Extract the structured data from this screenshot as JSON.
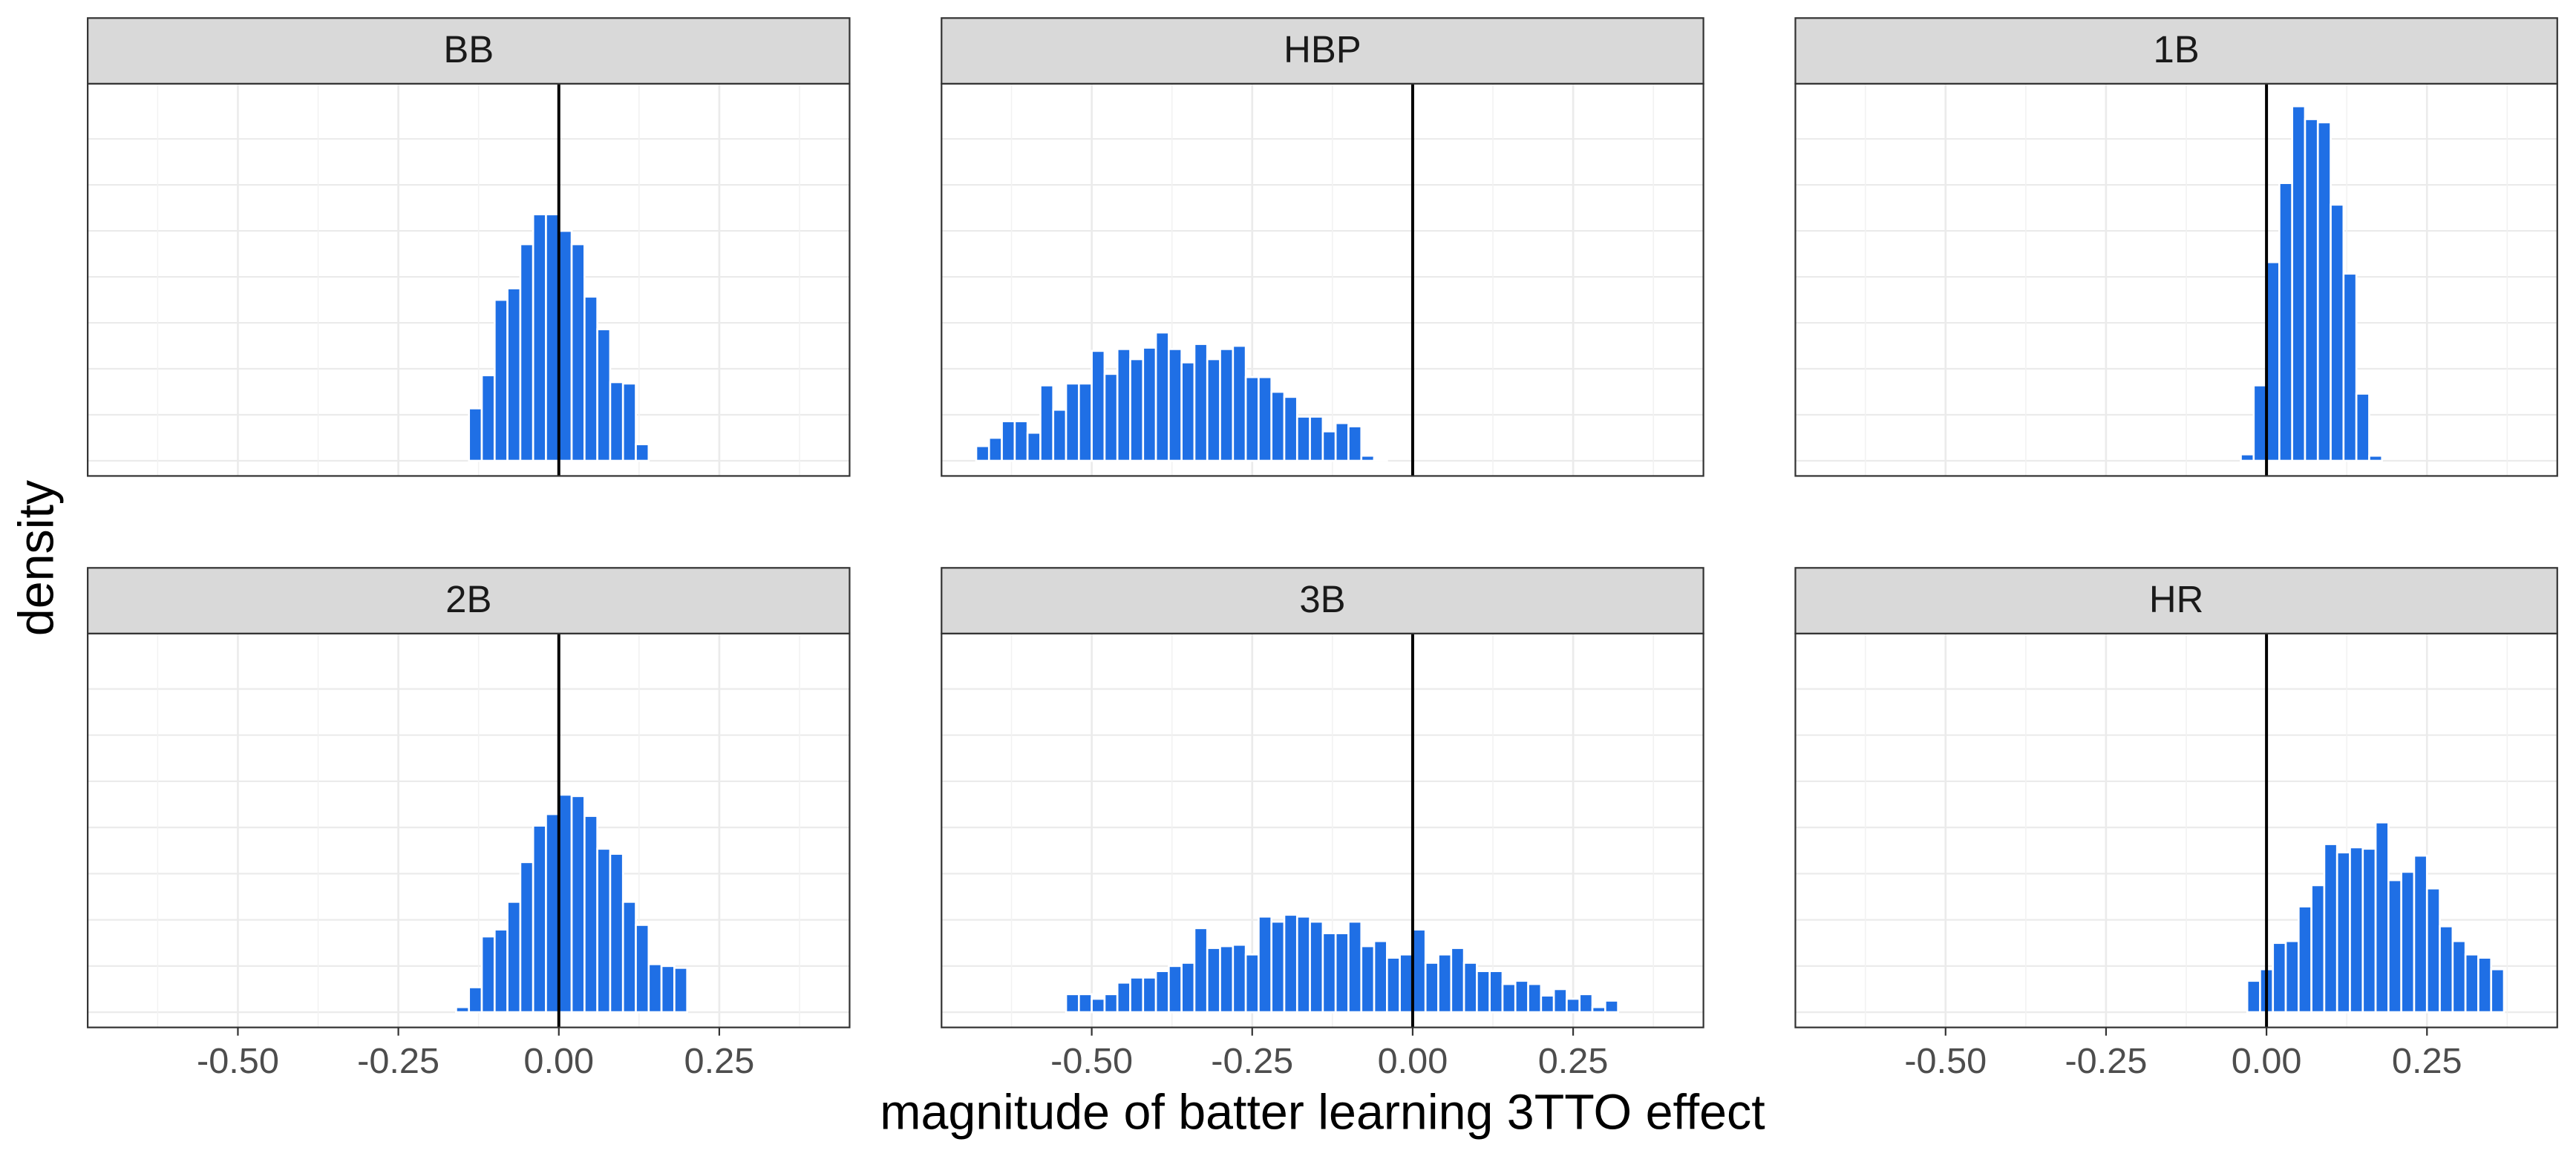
{
  "chart_data": {
    "type": "histogram",
    "xlabel": "magnitude of batter learning 3TTO effect",
    "ylabel": "density",
    "xlim": [
      -0.734,
      0.453
    ],
    "xticks": [
      {
        "value": -0.5,
        "label": "-0.50"
      },
      {
        "value": -0.25,
        "label": "-0.25"
      },
      {
        "value": 0,
        "label": "0.00"
      },
      {
        "value": 0.25,
        "label": "0.25"
      }
    ],
    "xminor": [
      -0.625,
      -0.375,
      -0.125,
      0.125,
      0.375
    ],
    "ylim": [
      -0.33,
      8.2
    ],
    "yticks": [
      0,
      1,
      2,
      3,
      4,
      5,
      6,
      7
    ],
    "grid": true,
    "vline": 0,
    "color": "#1f6fe5",
    "panels": [
      {
        "title": "BB",
        "bins": [
          -0.14,
          -0.12,
          -0.1,
          -0.08,
          -0.06,
          -0.04,
          -0.02,
          0,
          0.02,
          0.04,
          0.06,
          0.08,
          0.1,
          0.12,
          0.14
        ],
        "values": [
          1.14,
          1.86,
          3.5,
          3.75,
          4.71,
          5.36,
          5.36,
          5.0,
          4.71,
          3.57,
          2.86,
          1.71,
          1.68,
          0.36
        ]
      },
      {
        "title": "HBP",
        "bins": [
          -0.68,
          -0.66,
          -0.64,
          -0.62,
          -0.6,
          -0.58,
          -0.56,
          -0.54,
          -0.52,
          -0.5,
          -0.48,
          -0.46,
          -0.44,
          -0.42,
          -0.4,
          -0.38,
          -0.36,
          -0.34,
          -0.32,
          -0.3,
          -0.28,
          -0.26,
          -0.24,
          -0.22,
          -0.2,
          -0.18,
          -0.16,
          -0.14,
          -0.12,
          -0.1,
          -0.08,
          -0.06,
          -0.04
        ],
        "values": [
          0.32,
          0.5,
          0.86,
          0.86,
          0.61,
          1.64,
          1.11,
          1.68,
          1.68,
          2.39,
          1.89,
          2.43,
          2.21,
          2.46,
          2.79,
          2.43,
          2.14,
          2.54,
          2.21,
          2.43,
          2.5,
          1.82,
          1.82,
          1.5,
          1.39,
          0.96,
          0.96,
          0.64,
          0.82,
          0.75,
          0.11,
          0.04
        ]
      },
      {
        "title": "1B",
        "bins": [
          -0.04,
          -0.02,
          0,
          0.02,
          0.04,
          0.06,
          0.08,
          0.1,
          0.12,
          0.14,
          0.16,
          0.18
        ],
        "values": [
          0.14,
          1.64,
          4.32,
          6.04,
          7.71,
          7.43,
          7.36,
          5.57,
          4.07,
          1.46,
          0.11
        ]
      },
      {
        "title": "2B",
        "bins": [
          -0.16,
          -0.14,
          -0.12,
          -0.1,
          -0.08,
          -0.06,
          -0.04,
          -0.02,
          0,
          0.02,
          0.04,
          0.06,
          0.08,
          0.1,
          0.12,
          0.14,
          0.16,
          0.18,
          0.2
        ],
        "values": [
          0.11,
          0.54,
          1.64,
          1.79,
          2.39,
          3.25,
          4.04,
          4.29,
          4.71,
          4.68,
          4.25,
          3.54,
          3.43,
          2.39,
          1.89,
          1.04,
          1.0,
          0.96
        ]
      },
      {
        "title": "3B",
        "bins": [
          -0.54,
          -0.52,
          -0.5,
          -0.48,
          -0.46,
          -0.44,
          -0.42,
          -0.4,
          -0.38,
          -0.36,
          -0.34,
          -0.32,
          -0.3,
          -0.28,
          -0.26,
          -0.24,
          -0.22,
          -0.2,
          -0.18,
          -0.16,
          -0.14,
          -0.12,
          -0.1,
          -0.08,
          -0.06,
          -0.04,
          -0.02,
          0,
          0.02,
          0.04,
          0.06,
          0.08,
          0.1,
          0.12,
          0.14,
          0.16,
          0.18,
          0.2,
          0.22,
          0.24,
          0.26,
          0.28,
          0.3,
          0.32
        ],
        "values": [
          0.39,
          0.39,
          0.29,
          0.39,
          0.64,
          0.75,
          0.75,
          0.89,
          1.0,
          1.07,
          1.82,
          1.39,
          1.43,
          1.46,
          1.25,
          2.07,
          1.96,
          2.11,
          2.07,
          1.96,
          1.71,
          1.71,
          1.96,
          1.43,
          1.54,
          1.18,
          1.25,
          1.79,
          1.07,
          1.25,
          1.39,
          1.07,
          0.89,
          0.89,
          0.61,
          0.68,
          0.61,
          0.36,
          0.5,
          0.29,
          0.39,
          0.11,
          0.25
        ]
      },
      {
        "title": "HR",
        "bins": [
          -0.03,
          -0.01,
          0.01,
          0.03,
          0.05,
          0.07,
          0.09,
          0.11,
          0.13,
          0.15,
          0.17,
          0.19,
          0.21,
          0.23,
          0.25,
          0.27,
          0.29,
          0.31,
          0.33,
          0.35,
          0.37
        ],
        "values": [
          0.68,
          0.93,
          1.5,
          1.54,
          2.29,
          2.75,
          3.64,
          3.46,
          3.57,
          3.54,
          4.11,
          2.86,
          3.04,
          3.39,
          2.68,
          1.86,
          1.54,
          1.25,
          1.18,
          0.93
        ]
      }
    ]
  }
}
